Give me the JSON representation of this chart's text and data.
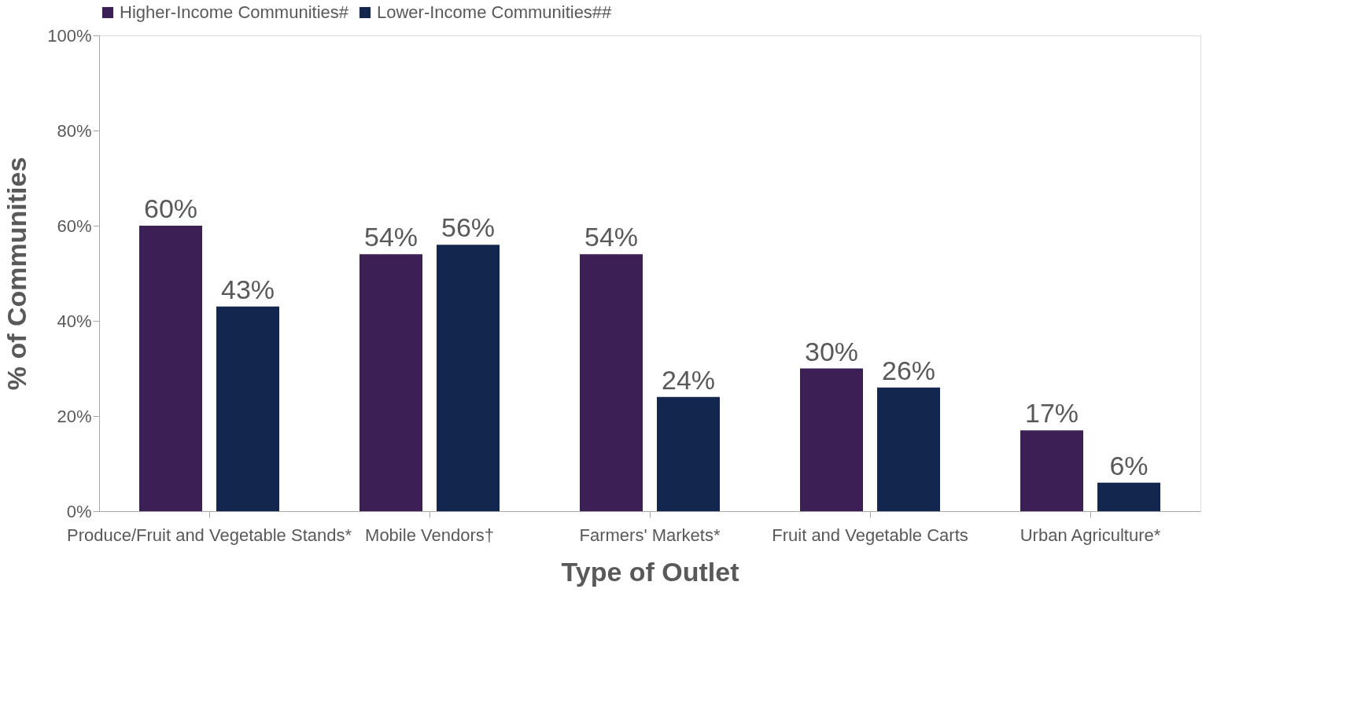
{
  "chart_data": {
    "type": "bar",
    "xlabel": "Type of Outlet",
    "ylabel": "% of Communities",
    "categories": [
      "Produce/Fruit and Vegetable Stands*",
      "Mobile Vendors†",
      "Farmers' Markets*",
      "Fruit and Vegetable Carts",
      "Urban Agriculture*"
    ],
    "series": [
      {
        "name": "Higher-Income Communities#",
        "color": "#3b1f55",
        "values": [
          60,
          54,
          54,
          30,
          17
        ],
        "value_labels": [
          "60%",
          "54%",
          "54%",
          "30%",
          "17%"
        ]
      },
      {
        "name": "Lower-Income Communities##",
        "color": "#13264d",
        "values": [
          43,
          56,
          24,
          26,
          6
        ],
        "value_labels": [
          "43%",
          "56%",
          "24%",
          "26%",
          "6%"
        ]
      }
    ],
    "ylim": [
      0,
      100
    ],
    "yticks": [
      {
        "value": 0,
        "label": "0%"
      },
      {
        "value": 20,
        "label": "20%"
      },
      {
        "value": 40,
        "label": "40%"
      },
      {
        "value": 60,
        "label": "60%"
      },
      {
        "value": 80,
        "label": "80%"
      },
      {
        "value": 100,
        "label": "100%"
      }
    ],
    "grid": false,
    "legend": "top"
  }
}
